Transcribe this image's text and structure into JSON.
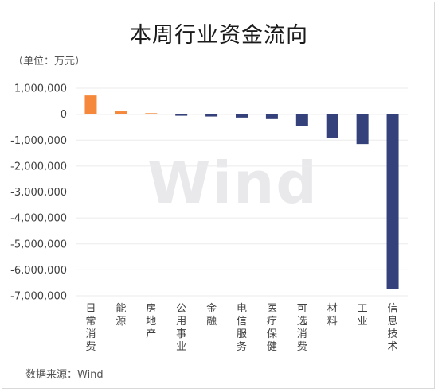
{
  "title": "本周行业资金流向",
  "unit_label": "（单位：万元）",
  "source_label": "数据来源：Wind",
  "watermark": "Wind",
  "colors": {
    "positive": "#F5883A",
    "negative": "#35417A",
    "grid": "#ebebeb",
    "axis": "#bfbfbf"
  },
  "chart_data": {
    "type": "bar",
    "title": "本周行业资金流向",
    "ylabel": "（单位：万元）",
    "xlabel": "",
    "ylim": [
      -7000000,
      1000000
    ],
    "yticks": [
      1000000,
      0,
      -1000000,
      -2000000,
      -3000000,
      -4000000,
      -5000000,
      -6000000,
      -7000000
    ],
    "ytick_labels": [
      "1,000,000",
      "0",
      "-1,000,000",
      "-2,000,000",
      "-3,000,000",
      "-4,000,000",
      "-5,000,000",
      "-6,000,000",
      "-7,000,000"
    ],
    "grid": true,
    "categories": [
      "日常消费",
      "能源",
      "房地产",
      "公用事业",
      "金融",
      "电信服务",
      "医疗保健",
      "可选消费",
      "材料",
      "工业",
      "信息技术"
    ],
    "values": [
      720000,
      110000,
      40000,
      -60000,
      -90000,
      -130000,
      -190000,
      -450000,
      -900000,
      -1150000,
      -6750000
    ]
  }
}
